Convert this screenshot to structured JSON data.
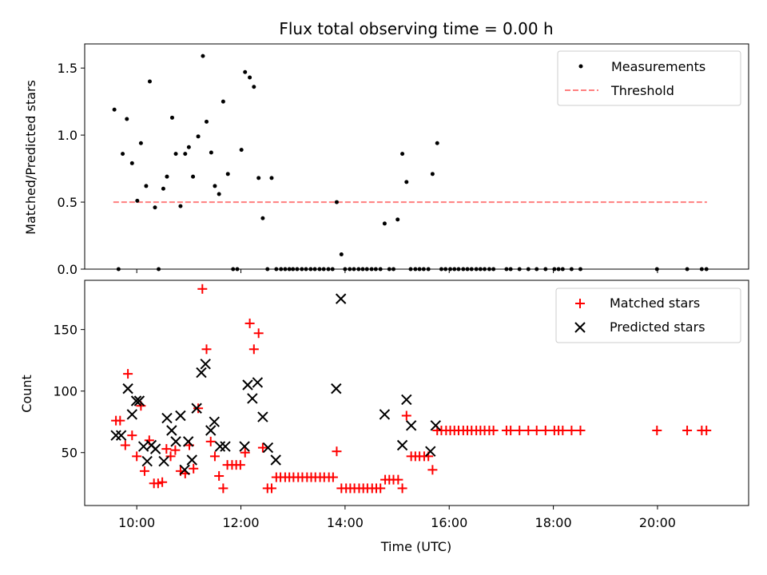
{
  "colors": {
    "measurement": "#000000",
    "threshold": "#ff7f7f",
    "matched": "#ff0000",
    "predicted": "#000000"
  },
  "chart_data": [
    {
      "type": "scatter",
      "title": "Flux total observing time = 0.00 h",
      "xlabel": "",
      "ylabel": "Matched/Predicted stars",
      "xlim": [
        9.0,
        21.75
      ],
      "ylim": [
        0,
        1.68
      ],
      "yticks": [
        0.0,
        0.5,
        1.0,
        1.5
      ],
      "ytick_labels": [
        "0.0",
        "0.5",
        "1.0",
        "1.5"
      ],
      "legend": {
        "position": "top-right",
        "entries": [
          "Measurements",
          "Threshold"
        ]
      },
      "threshold": {
        "name": "Threshold",
        "y": 0.5,
        "x": [
          9.55,
          20.95
        ]
      },
      "series": [
        {
          "name": "Measurements",
          "x": [
            9.57,
            9.65,
            9.73,
            9.81,
            9.91,
            10.01,
            10.08,
            10.18,
            10.25,
            10.35,
            10.42,
            10.51,
            10.58,
            10.68,
            10.75,
            10.84,
            10.93,
            11.0,
            11.08,
            11.18,
            11.27,
            11.34,
            11.43,
            11.5,
            11.58,
            11.66,
            11.75,
            11.85,
            11.93,
            12.01,
            12.08,
            12.17,
            12.25,
            12.34,
            12.42,
            12.51,
            12.59,
            12.68,
            12.77,
            12.85,
            12.93,
            13.0,
            13.08,
            13.17,
            13.25,
            13.34,
            13.42,
            13.51,
            13.59,
            13.68,
            13.76,
            13.84,
            13.93,
            14.0,
            14.09,
            14.17,
            14.26,
            14.34,
            14.42,
            14.51,
            14.59,
            14.68,
            14.76,
            14.85,
            14.93,
            15.01,
            15.1,
            15.18,
            15.26,
            15.35,
            15.43,
            15.51,
            15.6,
            15.68,
            15.77,
            15.85,
            15.93,
            16.02,
            16.1,
            16.18,
            16.27,
            16.35,
            16.43,
            16.52,
            16.6,
            16.68,
            16.77,
            16.85,
            17.1,
            17.18,
            17.35,
            17.52,
            17.68,
            17.85,
            18.02,
            18.1,
            18.18,
            18.35,
            18.52,
            19.99,
            20.57,
            20.85,
            20.94
          ],
          "y": [
            1.19,
            0.0,
            0.86,
            1.12,
            0.79,
            0.51,
            0.94,
            0.62,
            1.4,
            0.46,
            0.0,
            0.6,
            0.69,
            1.13,
            0.86,
            0.47,
            0.86,
            0.91,
            0.69,
            0.99,
            1.59,
            1.1,
            0.87,
            0.62,
            0.56,
            1.25,
            0.71,
            0.0,
            0.0,
            0.89,
            1.47,
            1.43,
            1.36,
            0.68,
            0.38,
            0.0,
            0.68,
            0.0,
            0.0,
            0.0,
            0.0,
            0.0,
            0.0,
            0.0,
            0.0,
            0.0,
            0.0,
            0.0,
            0.0,
            0.0,
            0.0,
            0.5,
            0.11,
            0.0,
            0.0,
            0.0,
            0.0,
            0.0,
            0.0,
            0.0,
            0.0,
            0.0,
            0.34,
            0.0,
            0.0,
            0.37,
            0.86,
            0.65,
            0.0,
            0.0,
            0.0,
            0.0,
            0.0,
            0.71,
            0.94,
            0.0,
            0.0,
            0.0,
            0.0,
            0.0,
            0.0,
            0.0,
            0.0,
            0.0,
            0.0,
            0.0,
            0.0,
            0.0,
            0.0,
            0.0,
            0.0,
            0.0,
            0.0,
            0.0,
            0.0,
            0.0,
            0.0,
            0.0,
            0.0,
            0.0,
            0.0,
            0.0,
            0.0
          ]
        }
      ]
    },
    {
      "type": "scatter",
      "title": "",
      "xlabel": "Time (UTC)",
      "ylabel": "Count",
      "xlim": [
        9.0,
        21.75
      ],
      "ylim": [
        7,
        190
      ],
      "xticks": [
        10,
        12,
        14,
        16,
        18,
        20
      ],
      "xtick_labels": [
        "10:00",
        "12:00",
        "14:00",
        "16:00",
        "18:00",
        "20:00"
      ],
      "yticks": [
        50,
        100,
        150
      ],
      "ytick_labels": [
        "50",
        "100",
        "150"
      ],
      "legend": {
        "position": "top-right",
        "entries": [
          "Matched stars",
          "Predicted stars"
        ]
      },
      "series": [
        {
          "name": "Matched stars",
          "marker": "+",
          "x": [
            9.6,
            9.68,
            9.78,
            9.83,
            9.91,
            10.0,
            10.08,
            10.15,
            10.24,
            10.33,
            10.41,
            10.49,
            10.57,
            10.65,
            10.74,
            10.84,
            10.93,
            11.01,
            11.09,
            11.18,
            11.26,
            11.34,
            11.42,
            11.5,
            11.58,
            11.66,
            11.74,
            11.83,
            11.91,
            11.99,
            12.08,
            12.17,
            12.25,
            12.34,
            12.42,
            12.51,
            12.59,
            12.68,
            12.76,
            12.85,
            12.93,
            13.01,
            13.1,
            13.18,
            13.27,
            13.35,
            13.43,
            13.52,
            13.6,
            13.69,
            13.77,
            13.84,
            13.93,
            14.02,
            14.1,
            14.18,
            14.27,
            14.35,
            14.43,
            14.52,
            14.6,
            14.68,
            14.77,
            14.85,
            14.93,
            15.02,
            15.1,
            15.18,
            15.27,
            15.35,
            15.43,
            15.52,
            15.6,
            15.68,
            15.77,
            15.85,
            15.94,
            16.02,
            16.1,
            16.18,
            16.27,
            16.35,
            16.43,
            16.52,
            16.6,
            16.68,
            16.77,
            16.85,
            17.1,
            17.18,
            17.35,
            17.52,
            17.68,
            17.85,
            18.02,
            18.1,
            18.18,
            18.35,
            18.52,
            19.99,
            20.57,
            20.85,
            20.94
          ],
          "y": [
            76,
            76,
            56,
            114,
            64,
            47,
            88,
            35,
            60,
            25,
            25,
            26,
            53,
            47,
            52,
            35,
            33,
            56,
            37,
            86,
            183,
            134,
            59,
            47,
            31,
            21,
            40,
            40,
            40,
            40,
            50,
            155,
            134,
            147,
            54,
            21,
            21,
            30,
            30,
            30,
            30,
            30,
            30,
            30,
            30,
            30,
            30,
            30,
            30,
            30,
            30,
            51,
            21,
            21,
            21,
            21,
            21,
            21,
            21,
            21,
            21,
            21,
            28,
            28,
            28,
            28,
            21,
            80,
            47,
            47,
            47,
            47,
            47,
            36,
            68,
            68,
            68,
            68,
            68,
            68,
            68,
            68,
            68,
            68,
            68,
            68,
            68,
            68,
            68,
            68,
            68,
            68,
            68,
            68,
            68,
            68,
            68,
            68,
            68,
            68,
            68,
            68,
            68
          ]
        },
        {
          "name": "Predicted stars",
          "marker": "x",
          "x": [
            9.6,
            9.7,
            9.83,
            9.91,
            9.99,
            10.05,
            10.13,
            10.2,
            10.28,
            10.36,
            10.52,
            10.58,
            10.67,
            10.75,
            10.84,
            10.92,
            10.99,
            11.06,
            11.15,
            11.24,
            11.32,
            11.42,
            11.49,
            11.6,
            11.7,
            12.07,
            12.13,
            12.22,
            12.32,
            12.42,
            12.52,
            12.67,
            13.83,
            13.92,
            14.76,
            15.1,
            15.18,
            15.27,
            15.64,
            15.74
          ],
          "y": [
            64,
            64,
            102,
            81,
            92,
            92,
            55,
            43,
            56,
            53,
            43,
            78,
            68,
            59,
            80,
            36,
            59,
            44,
            86,
            115,
            122,
            68,
            75,
            55,
            55,
            55,
            105,
            94,
            107,
            79,
            54,
            44,
            102,
            175,
            81,
            56,
            93,
            72,
            51,
            72
          ]
        }
      ]
    }
  ]
}
